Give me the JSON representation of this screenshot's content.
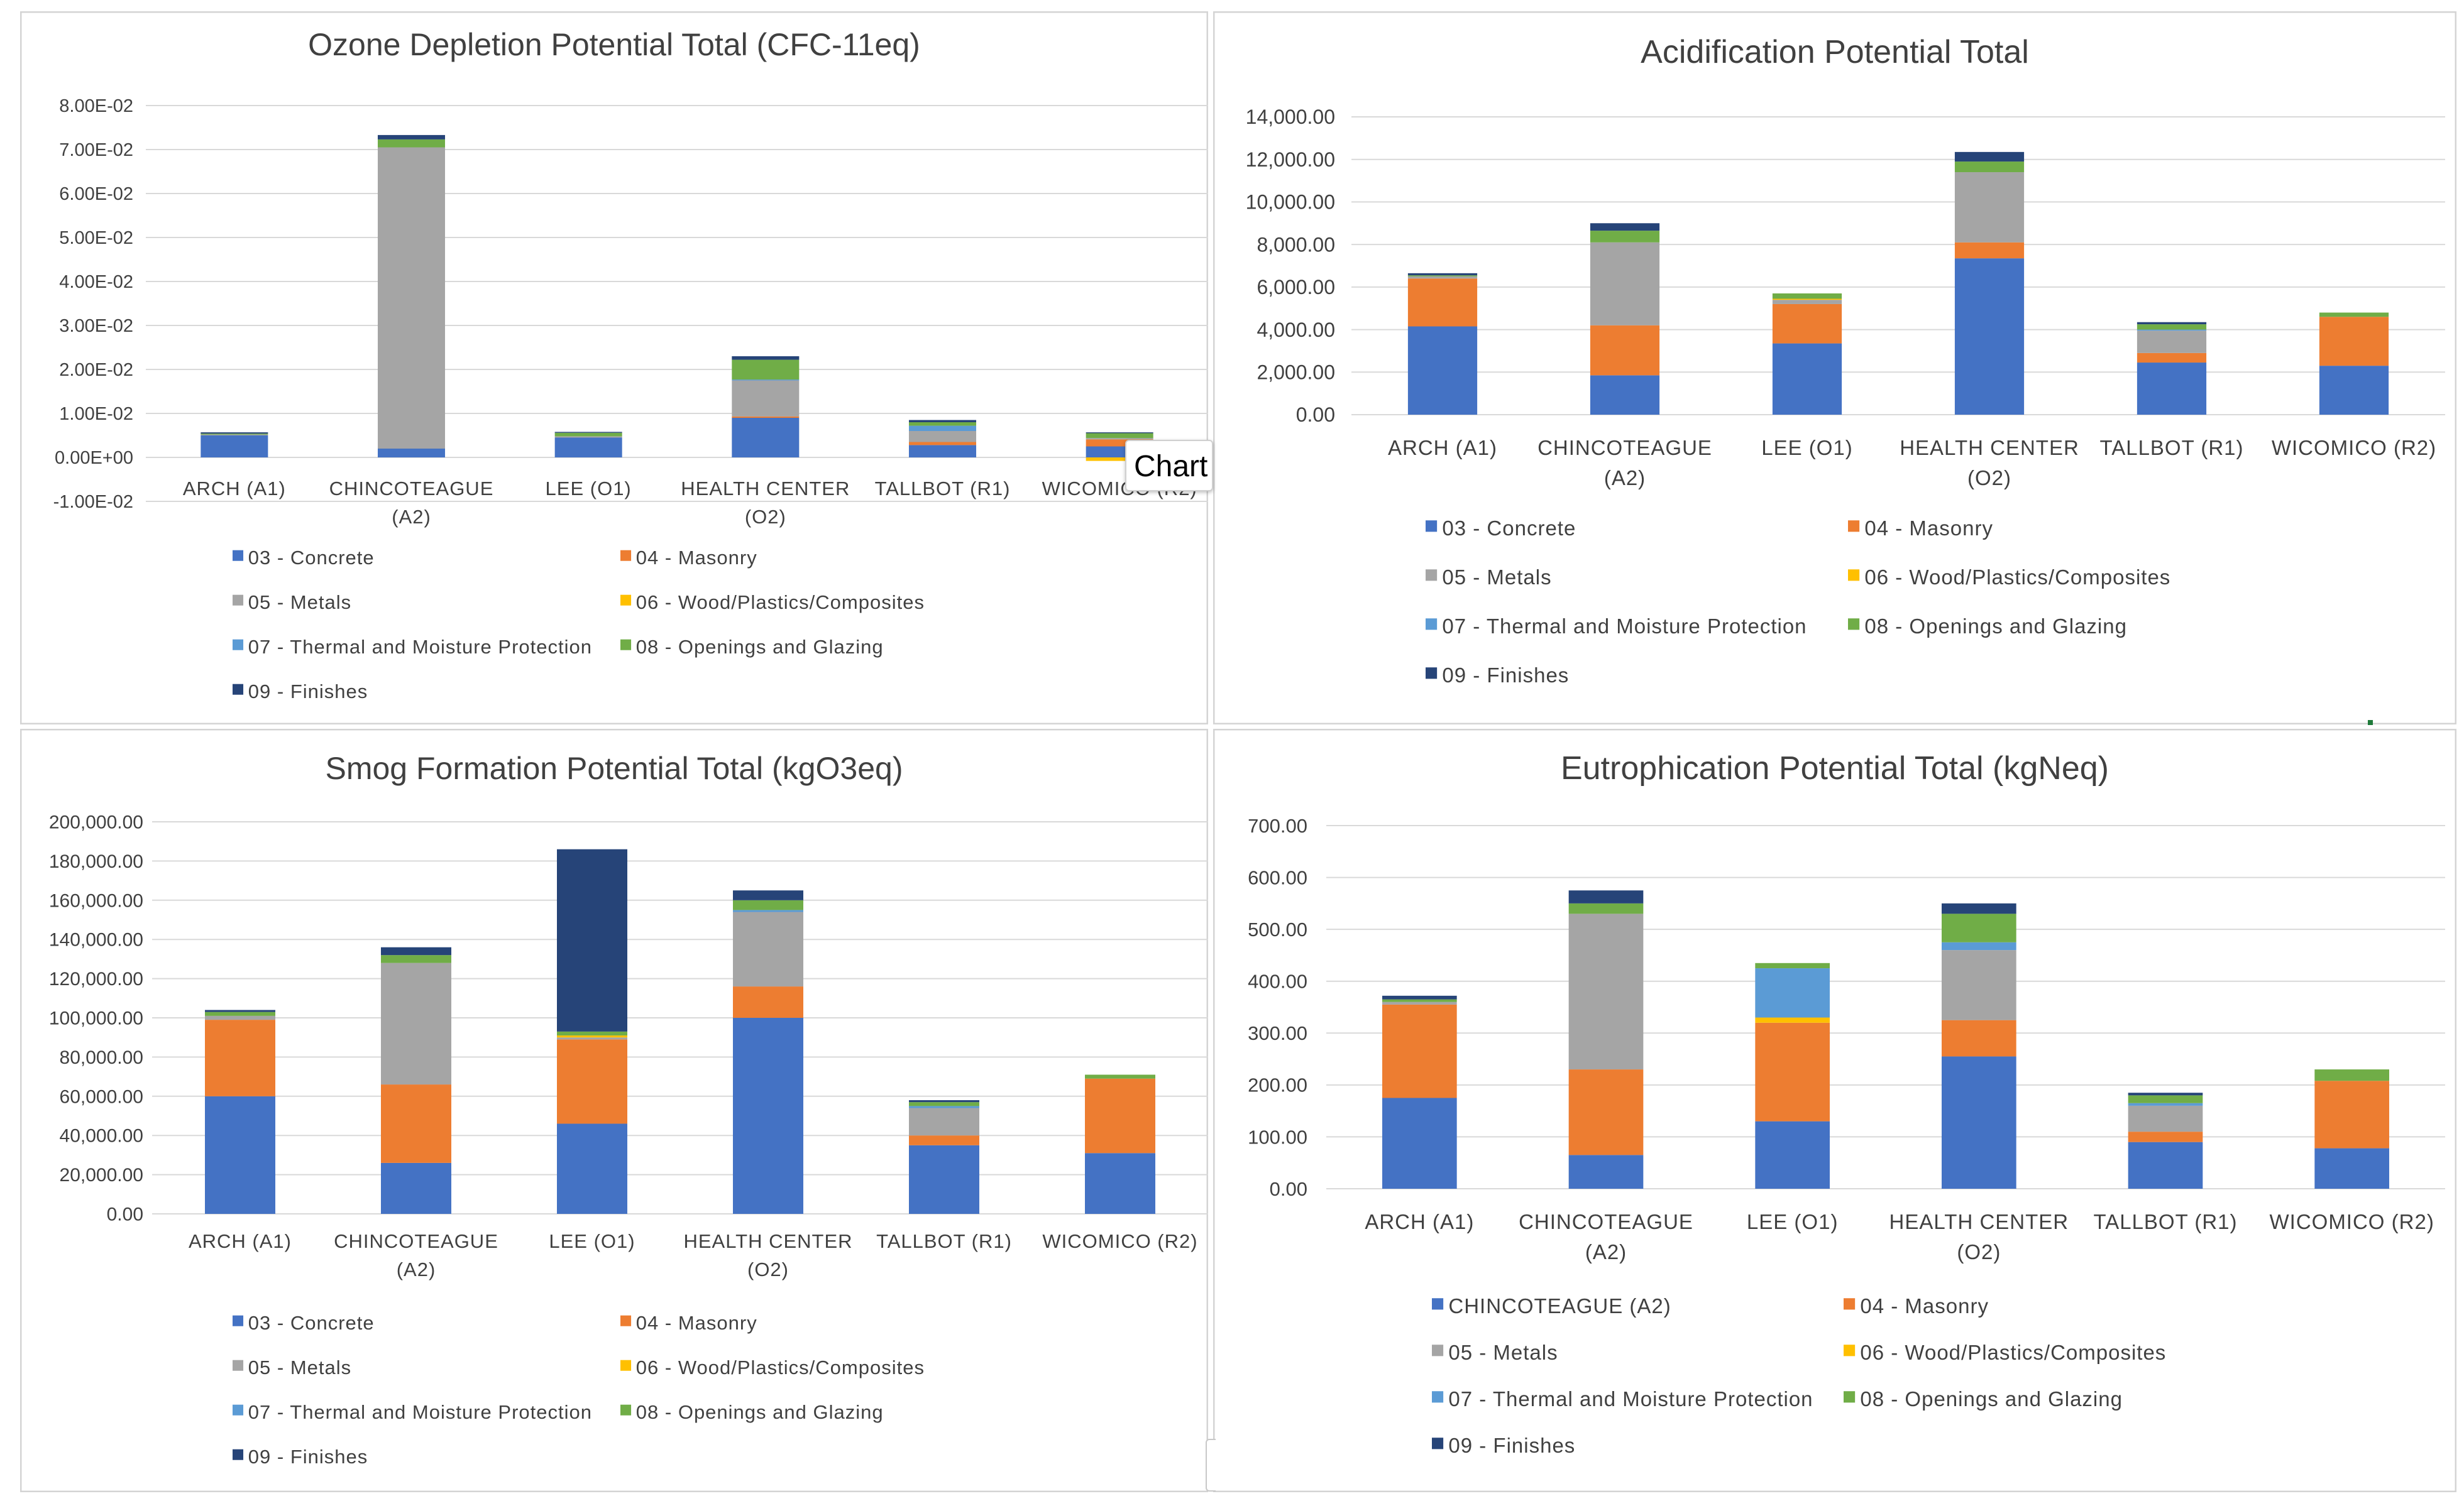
{
  "colors": {
    "concrete": "#4472C4",
    "masonry": "#ED7D31",
    "metals": "#A5A5A5",
    "wood": "#FFC000",
    "thermal": "#5B9BD5",
    "openings": "#70AD47",
    "finishes": "#264478",
    "grid": "#d9d9d9",
    "text": "#404040",
    "title": "#404040"
  },
  "tooltip": {
    "label": "Chart"
  },
  "chart_data": [
    {
      "type": "bar",
      "stacked": true,
      "title": "Ozone Depletion Potential Total  (CFC-11eq)",
      "categories": [
        "ARCH (A1)",
        "CHINCOTEAGUE (A2)",
        "LEE (O1)",
        "HEALTH CENTER (O2)",
        "TALLBOT (R1)",
        "WICOMICO (R2)"
      ],
      "category_lines": [
        [
          "ARCH (A1)"
        ],
        [
          "CHINCOTEAGUE",
          "(A2)"
        ],
        [
          "LEE (O1)"
        ],
        [
          "HEALTH CENTER",
          "(O2)"
        ],
        [
          "TALLBOT (R1)"
        ],
        [
          "WICOMICO (R2)"
        ]
      ],
      "ylim": [
        -0.01,
        0.08
      ],
      "yticks": [
        -0.01,
        0,
        0.01,
        0.02,
        0.03,
        0.04,
        0.05,
        0.06,
        0.07,
        0.08
      ],
      "yticklabels": [
        "-1.00E-02",
        "0.00E+00",
        "1.00E-02",
        "2.00E-02",
        "3.00E-02",
        "4.00E-02",
        "5.00E-02",
        "6.00E-02",
        "7.00E-02",
        "8.00E-02"
      ],
      "grid": true,
      "legend_position": "bottom",
      "series": [
        {
          "name": "03 - Concrete",
          "color_key": "concrete",
          "values": [
            0.005,
            0.002,
            0.0045,
            0.009,
            0.0028,
            0.0025
          ]
        },
        {
          "name": "04 - Masonry",
          "color_key": "masonry",
          "values": [
            0,
            0,
            0,
            0.0003,
            0.0007,
            0.0016
          ]
        },
        {
          "name": "05 - Metals",
          "color_key": "metals",
          "values": [
            0.0002,
            0.0685,
            0.0003,
            0.0082,
            0.0025,
            0.0003
          ]
        },
        {
          "name": "06 - Wood/Plastics/Composites",
          "color_key": "wood",
          "values": [
            0,
            0,
            0,
            0,
            0,
            -0.0008
          ]
        },
        {
          "name": "07 - Thermal and Moisture Protection",
          "color_key": "thermal",
          "values": [
            0,
            0,
            0,
            0.0002,
            0.0012,
            0
          ]
        },
        {
          "name": "08 - Openings and Glazing",
          "color_key": "openings",
          "values": [
            0.0002,
            0.0018,
            0.0008,
            0.0045,
            0.0008,
            0.0011
          ]
        },
        {
          "name": "09 - Finishes",
          "color_key": "finishes",
          "values": [
            0.0003,
            0.001,
            0.0002,
            0.0008,
            0.0005,
            0.0002
          ]
        }
      ]
    },
    {
      "type": "bar",
      "stacked": true,
      "title": "Acidification Potential Total",
      "categories": [
        "ARCH (A1)",
        "CHINCOTEAGUE (A2)",
        "LEE (O1)",
        "HEALTH CENTER (O2)",
        "TALLBOT (R1)",
        "WICOMICO (R2)"
      ],
      "category_lines": [
        [
          "ARCH (A1)"
        ],
        [
          "CHINCOTEAGUE",
          "(A2)"
        ],
        [
          "LEE (O1)"
        ],
        [
          "HEALTH CENTER",
          "(O2)"
        ],
        [
          "TALLBOT (R1)"
        ],
        [
          "WICOMICO (R2)"
        ]
      ],
      "ylim": [
        0,
        14000
      ],
      "yticks": [
        0,
        2000,
        4000,
        6000,
        8000,
        10000,
        12000,
        14000
      ],
      "yticklabels": [
        "0.00",
        "2,000.00",
        "4,000.00",
        "6,000.00",
        "8,000.00",
        "10,000.00",
        "12,000.00",
        "14,000.00"
      ],
      "grid": true,
      "legend_position": "bottom",
      "series": [
        {
          "name": "03 - Concrete",
          "color_key": "concrete",
          "values": [
            4150,
            1850,
            3350,
            7350,
            2450,
            2300
          ]
        },
        {
          "name": "04 - Masonry",
          "color_key": "masonry",
          "values": [
            2250,
            2350,
            1850,
            750,
            450,
            2300
          ]
        },
        {
          "name": "05 - Metals",
          "color_key": "metals",
          "values": [
            100,
            3900,
            200,
            3300,
            1050,
            0
          ]
        },
        {
          "name": "06 - Wood/Plastics/Composites",
          "color_key": "wood",
          "values": [
            0,
            0,
            50,
            0,
            0,
            0
          ]
        },
        {
          "name": "07 - Thermal and Moisture Protection",
          "color_key": "thermal",
          "values": [
            0,
            0,
            0,
            0,
            50,
            0
          ]
        },
        {
          "name": "08 - Openings and Glazing",
          "color_key": "openings",
          "values": [
            50,
            550,
            250,
            500,
            250,
            200
          ]
        },
        {
          "name": "09 - Finishes",
          "color_key": "finishes",
          "values": [
            100,
            350,
            0,
            450,
            100,
            0
          ]
        }
      ]
    },
    {
      "type": "bar",
      "stacked": true,
      "title": "Smog Formation Potential Total (kgO3eq)",
      "categories": [
        "ARCH (A1)",
        "CHINCOTEAGUE (A2)",
        "LEE (O1)",
        "HEALTH CENTER (O2)",
        "TALLBOT (R1)",
        "WICOMICO (R2)"
      ],
      "category_lines": [
        [
          "ARCH (A1)"
        ],
        [
          "CHINCOTEAGUE",
          "(A2)"
        ],
        [
          "LEE (O1)"
        ],
        [
          "HEALTH CENTER",
          "(O2)"
        ],
        [
          "TALLBOT (R1)"
        ],
        [
          "WICOMICO (R2)"
        ]
      ],
      "ylim": [
        0,
        200000
      ],
      "yticks": [
        0,
        20000,
        40000,
        60000,
        80000,
        100000,
        120000,
        140000,
        160000,
        180000,
        200000
      ],
      "yticklabels": [
        "0.00",
        "20,000.00",
        "40,000.00",
        "60,000.00",
        "80,000.00",
        "100,000.00",
        "120,000.00",
        "140,000.00",
        "160,000.00",
        "180,000.00",
        "200,000.00"
      ],
      "grid": true,
      "legend_position": "bottom",
      "series": [
        {
          "name": "03 - Concrete",
          "color_key": "concrete",
          "values": [
            60000,
            26000,
            46000,
            100000,
            35000,
            31000
          ]
        },
        {
          "name": "04 - Masonry",
          "color_key": "masonry",
          "values": [
            39000,
            40000,
            43000,
            16000,
            5000,
            38000
          ]
        },
        {
          "name": "05 - Metals",
          "color_key": "metals",
          "values": [
            2000,
            62000,
            1000,
            38000,
            14000,
            0
          ]
        },
        {
          "name": "06 - Wood/Plastics/Composites",
          "color_key": "wood",
          "values": [
            0,
            0,
            1000,
            0,
            0,
            0
          ]
        },
        {
          "name": "07 - Thermal and Moisture Protection",
          "color_key": "thermal",
          "values": [
            0,
            0,
            0,
            1000,
            1000,
            0
          ]
        },
        {
          "name": "08 - Openings and Glazing",
          "color_key": "openings",
          "values": [
            2000,
            4000,
            2000,
            5000,
            2000,
            2000
          ]
        },
        {
          "name": "09 - Finishes",
          "color_key": "finishes",
          "values": [
            1000,
            4000,
            93000,
            5000,
            1000,
            0
          ]
        }
      ]
    },
    {
      "type": "bar",
      "stacked": true,
      "title": "Eutrophication Potential Total (kgNeq)",
      "categories": [
        "ARCH (A1)",
        "CHINCOTEAGUE (A2)",
        "LEE (O1)",
        "HEALTH CENTER (O2)",
        "TALLBOT (R1)",
        "WICOMICO (R2)"
      ],
      "category_lines": [
        [
          "ARCH (A1)"
        ],
        [
          "CHINCOTEAGUE",
          "(A2)"
        ],
        [
          "LEE (O1)"
        ],
        [
          "HEALTH CENTER",
          "(O2)"
        ],
        [
          "TALLBOT (R1)"
        ],
        [
          "WICOMICO (R2)"
        ]
      ],
      "ylim": [
        0,
        700
      ],
      "yticks": [
        0,
        100,
        200,
        300,
        400,
        500,
        600,
        700
      ],
      "yticklabels": [
        "0.00",
        "100.00",
        "200.00",
        "300.00",
        "400.00",
        "500.00",
        "600.00",
        "700.00"
      ],
      "grid": true,
      "legend_position": "bottom",
      "series": [
        {
          "name": "CHINCOTEAGUE (A2)",
          "color_key": "concrete",
          "values": [
            175,
            65,
            130,
            255,
            90,
            78
          ]
        },
        {
          "name": "04 - Masonry",
          "color_key": "masonry",
          "values": [
            180,
            165,
            190,
            70,
            20,
            130
          ]
        },
        {
          "name": "05 - Metals",
          "color_key": "metals",
          "values": [
            5,
            300,
            0,
            135,
            50,
            0
          ]
        },
        {
          "name": "06 - Wood/Plastics/Composites",
          "color_key": "wood",
          "values": [
            0,
            0,
            10,
            0,
            0,
            0
          ]
        },
        {
          "name": "07 - Thermal and Moisture Protection",
          "color_key": "thermal",
          "values": [
            0,
            0,
            95,
            15,
            5,
            0
          ]
        },
        {
          "name": "08 - Openings and Glazing",
          "color_key": "openings",
          "values": [
            5,
            20,
            10,
            55,
            15,
            22
          ]
        },
        {
          "name": "09 - Finishes",
          "color_key": "finishes",
          "values": [
            7,
            25,
            0,
            20,
            5,
            0
          ]
        }
      ]
    }
  ]
}
